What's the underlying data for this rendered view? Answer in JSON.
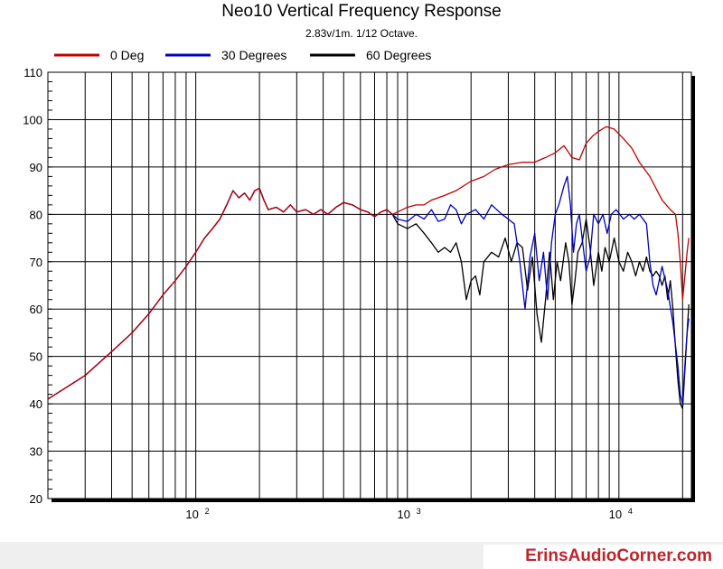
{
  "chart_data": {
    "type": "line",
    "title": "Neo10 Vertical Frequency Response",
    "subtitle": "2.83v/1m.  1/12 Octave.",
    "xlabel": "",
    "ylabel": "",
    "x_scale": "log",
    "xlim": [
      20,
      22000
    ],
    "ylim": [
      20,
      110
    ],
    "y_ticks": [
      20,
      30,
      40,
      50,
      60,
      70,
      80,
      90,
      100,
      110
    ],
    "x_tick_labels": [
      {
        "value": 100,
        "base": "10",
        "exp": "2"
      },
      {
        "value": 1000,
        "base": "10",
        "exp": "3"
      },
      {
        "value": 10000,
        "base": "10",
        "exp": "4"
      }
    ],
    "grid": true,
    "legend_position": "top",
    "series": [
      {
        "name": "0 Deg",
        "color": "#c00000",
        "points": [
          [
            20,
            41
          ],
          [
            30,
            46
          ],
          [
            40,
            51
          ],
          [
            50,
            55
          ],
          [
            60,
            59
          ],
          [
            70,
            63
          ],
          [
            80,
            66
          ],
          [
            90,
            69
          ],
          [
            100,
            72
          ],
          [
            110,
            75
          ],
          [
            120,
            77
          ],
          [
            130,
            79
          ],
          [
            140,
            82
          ],
          [
            150,
            85
          ],
          [
            160,
            83.5
          ],
          [
            170,
            84.5
          ],
          [
            180,
            83
          ],
          [
            190,
            85
          ],
          [
            200,
            85.5
          ],
          [
            210,
            83
          ],
          [
            220,
            81
          ],
          [
            240,
            81.5
          ],
          [
            260,
            80.5
          ],
          [
            280,
            82
          ],
          [
            300,
            80.5
          ],
          [
            330,
            81
          ],
          [
            360,
            80
          ],
          [
            390,
            81
          ],
          [
            420,
            80
          ],
          [
            460,
            81.5
          ],
          [
            500,
            82.5
          ],
          [
            550,
            82
          ],
          [
            600,
            81
          ],
          [
            650,
            80.5
          ],
          [
            700,
            79.5
          ],
          [
            750,
            80.5
          ],
          [
            800,
            81
          ],
          [
            850,
            80
          ],
          [
            900,
            80.5
          ],
          [
            1000,
            81.5
          ],
          [
            1100,
            82
          ],
          [
            1200,
            82
          ],
          [
            1300,
            83
          ],
          [
            1500,
            84
          ],
          [
            1700,
            85
          ],
          [
            2000,
            87
          ],
          [
            2300,
            88
          ],
          [
            2600,
            89.5
          ],
          [
            3000,
            90.5
          ],
          [
            3500,
            91
          ],
          [
            4000,
            91
          ],
          [
            4500,
            92
          ],
          [
            5000,
            93
          ],
          [
            5500,
            94.5
          ],
          [
            6000,
            92
          ],
          [
            6500,
            91.5
          ],
          [
            7000,
            95
          ],
          [
            7500,
            96.5
          ],
          [
            8000,
            97.5
          ],
          [
            8700,
            98.5
          ],
          [
            9500,
            98
          ],
          [
            10500,
            96
          ],
          [
            11500,
            94
          ],
          [
            12500,
            91
          ],
          [
            14000,
            88
          ],
          [
            16000,
            83
          ],
          [
            17500,
            81
          ],
          [
            18500,
            80
          ],
          [
            19000,
            76
          ],
          [
            19500,
            70
          ],
          [
            20000,
            62
          ],
          [
            20500,
            67
          ],
          [
            21000,
            72
          ],
          [
            21400,
            75
          ]
        ]
      },
      {
        "name": "30 Degrees",
        "color": "#0000c0",
        "points": [
          [
            20,
            41
          ],
          [
            30,
            46
          ],
          [
            40,
            51
          ],
          [
            50,
            55
          ],
          [
            60,
            59
          ],
          [
            70,
            63
          ],
          [
            80,
            66
          ],
          [
            90,
            69
          ],
          [
            100,
            72
          ],
          [
            110,
            75
          ],
          [
            120,
            77
          ],
          [
            130,
            79
          ],
          [
            140,
            82
          ],
          [
            150,
            85
          ],
          [
            160,
            83.5
          ],
          [
            170,
            84.5
          ],
          [
            180,
            83
          ],
          [
            190,
            85
          ],
          [
            200,
            85.5
          ],
          [
            210,
            83
          ],
          [
            220,
            81
          ],
          [
            240,
            81.5
          ],
          [
            260,
            80.5
          ],
          [
            280,
            82
          ],
          [
            300,
            80.5
          ],
          [
            330,
            81
          ],
          [
            360,
            80
          ],
          [
            390,
            81
          ],
          [
            420,
            80
          ],
          [
            460,
            81.5
          ],
          [
            500,
            82.5
          ],
          [
            550,
            82
          ],
          [
            600,
            81
          ],
          [
            650,
            80.5
          ],
          [
            700,
            79.5
          ],
          [
            750,
            80.5
          ],
          [
            800,
            81
          ],
          [
            850,
            80
          ],
          [
            900,
            79
          ],
          [
            1000,
            78.5
          ],
          [
            1100,
            80
          ],
          [
            1200,
            79
          ],
          [
            1300,
            81
          ],
          [
            1400,
            78.5
          ],
          [
            1500,
            79
          ],
          [
            1600,
            82
          ],
          [
            1700,
            81
          ],
          [
            1800,
            78
          ],
          [
            1900,
            80
          ],
          [
            2100,
            81
          ],
          [
            2300,
            79
          ],
          [
            2500,
            82
          ],
          [
            2800,
            80
          ],
          [
            3000,
            79
          ],
          [
            3200,
            78
          ],
          [
            3400,
            70
          ],
          [
            3600,
            60
          ],
          [
            3800,
            71
          ],
          [
            4000,
            76
          ],
          [
            4200,
            66
          ],
          [
            4400,
            72
          ],
          [
            4600,
            62
          ],
          [
            4800,
            74
          ],
          [
            5000,
            80
          ],
          [
            5200,
            82
          ],
          [
            5500,
            86
          ],
          [
            5700,
            88
          ],
          [
            5900,
            82
          ],
          [
            6100,
            72
          ],
          [
            6300,
            78
          ],
          [
            6500,
            80
          ],
          [
            6700,
            75
          ],
          [
            7000,
            68
          ],
          [
            7300,
            71
          ],
          [
            7600,
            80
          ],
          [
            8000,
            78
          ],
          [
            8400,
            80
          ],
          [
            8800,
            76
          ],
          [
            9200,
            80
          ],
          [
            9700,
            81
          ],
          [
            10500,
            79
          ],
          [
            11200,
            80
          ],
          [
            11800,
            79
          ],
          [
            12500,
            80
          ],
          [
            13000,
            79
          ],
          [
            13500,
            78
          ],
          [
            14000,
            70
          ],
          [
            14500,
            65
          ],
          [
            15000,
            63
          ],
          [
            16000,
            69
          ],
          [
            17000,
            64
          ],
          [
            18000,
            57
          ],
          [
            19000,
            48
          ],
          [
            19500,
            42
          ],
          [
            20000,
            40
          ],
          [
            20500,
            48
          ],
          [
            21000,
            55
          ],
          [
            21400,
            58
          ]
        ]
      },
      {
        "name": "60 Degrees",
        "color": "#000000",
        "points": [
          [
            20,
            41
          ],
          [
            30,
            46
          ],
          [
            40,
            51
          ],
          [
            50,
            55
          ],
          [
            60,
            59
          ],
          [
            70,
            63
          ],
          [
            80,
            66
          ],
          [
            90,
            69
          ],
          [
            100,
            72
          ],
          [
            110,
            75
          ],
          [
            120,
            77
          ],
          [
            130,
            79
          ],
          [
            140,
            82
          ],
          [
            150,
            85
          ],
          [
            160,
            83.5
          ],
          [
            170,
            84.5
          ],
          [
            180,
            83
          ],
          [
            190,
            85
          ],
          [
            200,
            85.5
          ],
          [
            210,
            83
          ],
          [
            220,
            81
          ],
          [
            240,
            81.5
          ],
          [
            260,
            80.5
          ],
          [
            280,
            82
          ],
          [
            300,
            80.5
          ],
          [
            330,
            81
          ],
          [
            360,
            80
          ],
          [
            390,
            81
          ],
          [
            420,
            80
          ],
          [
            460,
            81.5
          ],
          [
            500,
            82.5
          ],
          [
            550,
            82
          ],
          [
            600,
            81
          ],
          [
            650,
            80.5
          ],
          [
            700,
            79.5
          ],
          [
            750,
            80.5
          ],
          [
            800,
            81
          ],
          [
            850,
            80
          ],
          [
            900,
            78
          ],
          [
            1000,
            77
          ],
          [
            1100,
            78
          ],
          [
            1200,
            76
          ],
          [
            1300,
            74
          ],
          [
            1400,
            72
          ],
          [
            1500,
            73
          ],
          [
            1600,
            72
          ],
          [
            1700,
            74
          ],
          [
            1800,
            70
          ],
          [
            1900,
            62
          ],
          [
            2000,
            66
          ],
          [
            2100,
            67
          ],
          [
            2200,
            63
          ],
          [
            2300,
            70
          ],
          [
            2500,
            72
          ],
          [
            2700,
            71
          ],
          [
            2900,
            75
          ],
          [
            3100,
            70
          ],
          [
            3300,
            74
          ],
          [
            3500,
            73
          ],
          [
            3700,
            64
          ],
          [
            3900,
            71
          ],
          [
            4100,
            59
          ],
          [
            4300,
            53
          ],
          [
            4500,
            62
          ],
          [
            4700,
            72
          ],
          [
            4900,
            62
          ],
          [
            5100,
            70
          ],
          [
            5300,
            66
          ],
          [
            5600,
            74
          ],
          [
            5800,
            70
          ],
          [
            6000,
            61
          ],
          [
            6200,
            66
          ],
          [
            6400,
            72
          ],
          [
            6700,
            74
          ],
          [
            7000,
            79
          ],
          [
            7300,
            73
          ],
          [
            7600,
            65
          ],
          [
            8000,
            72
          ],
          [
            8300,
            68
          ],
          [
            8600,
            73
          ],
          [
            9000,
            70
          ],
          [
            9500,
            75
          ],
          [
            10000,
            70
          ],
          [
            10500,
            68
          ],
          [
            11000,
            72
          ],
          [
            11500,
            70
          ],
          [
            12000,
            67
          ],
          [
            12500,
            70
          ],
          [
            13000,
            68
          ],
          [
            13500,
            71
          ],
          [
            14000,
            68
          ],
          [
            14500,
            67
          ],
          [
            15000,
            68
          ],
          [
            15500,
            67
          ],
          [
            16000,
            65
          ],
          [
            16500,
            67
          ],
          [
            17000,
            62
          ],
          [
            17500,
            66
          ],
          [
            18000,
            60
          ],
          [
            18500,
            52
          ],
          [
            19000,
            45
          ],
          [
            19500,
            40
          ],
          [
            20000,
            39
          ],
          [
            20500,
            47
          ],
          [
            21000,
            55
          ],
          [
            21400,
            61
          ]
        ]
      }
    ]
  },
  "watermark": "ErinsAudioCorner.com"
}
